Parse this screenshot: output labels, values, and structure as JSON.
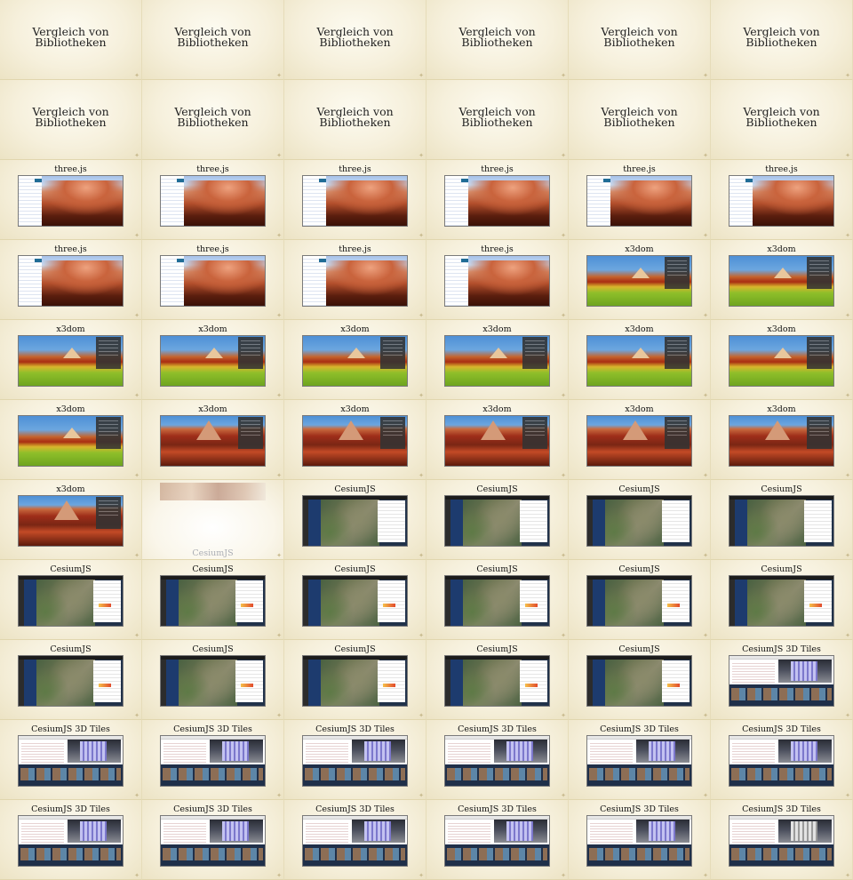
{
  "slides": [
    {
      "type": "title",
      "title": "Vergleich von\nBibliotheken"
    },
    {
      "type": "title",
      "title": "Vergleich von\nBibliotheken"
    },
    {
      "type": "title",
      "title": "Vergleich von\nBibliotheken"
    },
    {
      "type": "title",
      "title": "Vergleich von\nBibliotheken"
    },
    {
      "type": "title",
      "title": "Vergleich von\nBibliotheken"
    },
    {
      "type": "title",
      "title": "Vergleich von\nBibliotheken"
    },
    {
      "type": "title",
      "title": "Vergleich von\nBibliotheken"
    },
    {
      "type": "title",
      "title": "Vergleich von\nBibliotheken"
    },
    {
      "type": "title",
      "title": "Vergleich von\nBibliotheken"
    },
    {
      "type": "title",
      "title": "Vergleich von\nBibliotheken"
    },
    {
      "type": "title",
      "title": "Vergleich von\nBibliotheken"
    },
    {
      "type": "title",
      "title": "Vergleich von\nBibliotheken"
    },
    {
      "type": "three",
      "title": "three.js"
    },
    {
      "type": "three",
      "title": "three.js"
    },
    {
      "type": "three",
      "title": "three.js"
    },
    {
      "type": "three",
      "title": "three.js"
    },
    {
      "type": "three",
      "title": "three.js"
    },
    {
      "type": "three",
      "title": "three.js"
    },
    {
      "type": "three",
      "title": "three.js"
    },
    {
      "type": "three",
      "title": "three.js"
    },
    {
      "type": "three",
      "title": "three.js"
    },
    {
      "type": "three",
      "title": "three.js"
    },
    {
      "type": "x3dom",
      "title": "x3dom"
    },
    {
      "type": "x3dom",
      "title": "x3dom"
    },
    {
      "type": "x3dom",
      "title": "x3dom"
    },
    {
      "type": "x3dom",
      "title": "x3dom"
    },
    {
      "type": "x3dom",
      "title": "x3dom"
    },
    {
      "type": "x3dom",
      "title": "x3dom"
    },
    {
      "type": "x3dom",
      "title": "x3dom"
    },
    {
      "type": "x3dom",
      "title": "x3dom"
    },
    {
      "type": "x3dom",
      "title": "x3dom"
    },
    {
      "type": "x3dom-red",
      "title": "x3dom"
    },
    {
      "type": "x3dom-red",
      "title": "x3dom"
    },
    {
      "type": "x3dom-red",
      "title": "x3dom"
    },
    {
      "type": "x3dom-red",
      "title": "x3dom"
    },
    {
      "type": "x3dom-red",
      "title": "x3dom"
    },
    {
      "type": "x3dom-red",
      "title": "x3dom"
    },
    {
      "type": "transition",
      "title": "CesiumJS"
    },
    {
      "type": "cesium",
      "title": "CesiumJS"
    },
    {
      "type": "cesium",
      "title": "CesiumJS"
    },
    {
      "type": "cesium",
      "title": "CesiumJS"
    },
    {
      "type": "cesium",
      "title": "CesiumJS"
    },
    {
      "type": "cesium2",
      "title": "CesiumJS"
    },
    {
      "type": "cesium2",
      "title": "CesiumJS"
    },
    {
      "type": "cesium2",
      "title": "CesiumJS"
    },
    {
      "type": "cesium2",
      "title": "CesiumJS"
    },
    {
      "type": "cesium2",
      "title": "CesiumJS"
    },
    {
      "type": "cesium2",
      "title": "CesiumJS"
    },
    {
      "type": "cesium2",
      "title": "CesiumJS"
    },
    {
      "type": "cesium2",
      "title": "CesiumJS"
    },
    {
      "type": "cesium2",
      "title": "CesiumJS"
    },
    {
      "type": "cesium2",
      "title": "CesiumJS"
    },
    {
      "type": "cesium2",
      "title": "CesiumJS"
    },
    {
      "type": "tiles",
      "title": "CesiumJS 3D Tiles"
    },
    {
      "type": "tiles",
      "title": "CesiumJS 3D Tiles"
    },
    {
      "type": "tiles",
      "title": "CesiumJS 3D Tiles"
    },
    {
      "type": "tiles",
      "title": "CesiumJS 3D Tiles"
    },
    {
      "type": "tiles",
      "title": "CesiumJS 3D Tiles"
    },
    {
      "type": "tiles",
      "title": "CesiumJS 3D Tiles"
    },
    {
      "type": "tiles",
      "title": "CesiumJS 3D Tiles"
    },
    {
      "type": "tiles",
      "title": "CesiumJS 3D Tiles"
    },
    {
      "type": "tiles",
      "title": "CesiumJS 3D Tiles"
    },
    {
      "type": "tiles",
      "title": "CesiumJS 3D Tiles"
    },
    {
      "type": "tiles",
      "title": "CesiumJS 3D Tiles"
    },
    {
      "type": "tiles",
      "title": "CesiumJS 3D Tiles"
    },
    {
      "type": "tiles-grey",
      "title": "CesiumJS 3D Tiles"
    }
  ],
  "colors": {
    "background": "#f1ebd3",
    "title_text": "#111111"
  },
  "icons": {
    "slide_corner": "ornament-icon"
  }
}
